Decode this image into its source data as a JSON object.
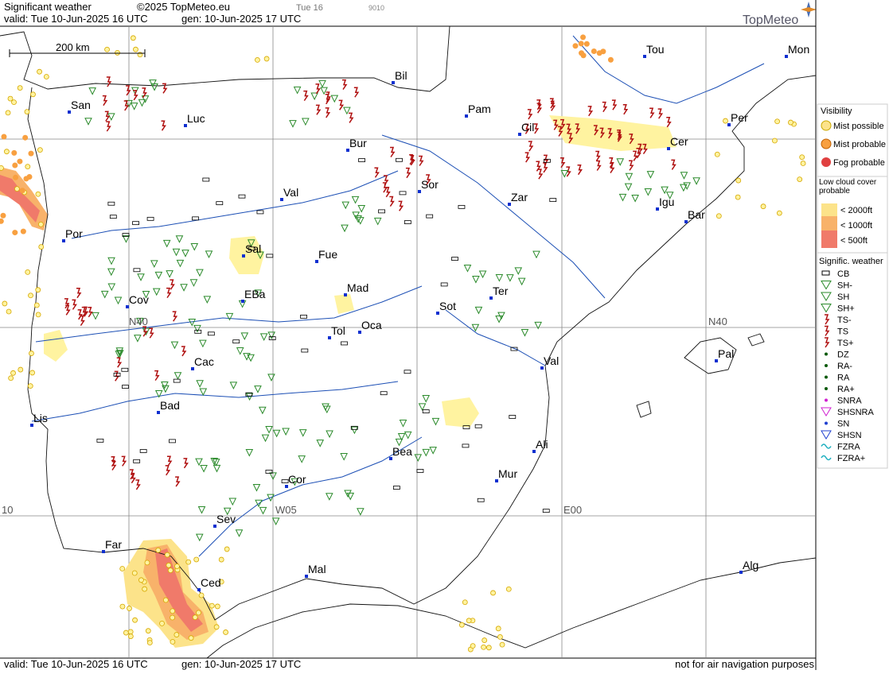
{
  "header": {
    "title": "Significant weather",
    "copyright": "©2025 TopMeteo.eu",
    "run": "Tue 16",
    "code": "9010",
    "valid": "valid:  Tue  10-Jun-2025  16 UTC",
    "gen": "gen: 10-Jun-2025 17 UTC",
    "logo": "TopMeteo"
  },
  "scale": "200 km",
  "cities": [
    "San",
    "Luc",
    "Bil",
    "Pam",
    "Tou",
    "Mon",
    "Per",
    "Cil",
    "Cer",
    "Bur",
    "Sor",
    "Zar",
    "Val",
    "Igu",
    "Bar",
    "Por",
    "Sal",
    "Fue",
    "Mad",
    "Cov",
    "EBa",
    "Tol",
    "Oca",
    "Sot",
    "Ter",
    "Val",
    "Pal",
    "Cac",
    "Bad",
    "Lis",
    "Bea",
    "Ali",
    "Mur",
    "Cor",
    "Sev",
    "Far",
    "Mal",
    "Ced",
    "Alg"
  ],
  "grid_labels": [
    "N40",
    "N40",
    "W05",
    "E00",
    "10"
  ],
  "legend": {
    "visibility": {
      "title": "Visibility",
      "items": [
        "Mist possible",
        "Mist probable",
        "Fog probable"
      ]
    },
    "cloud": {
      "title": "Low cloud cover probable",
      "items": [
        "< 2000ft",
        "< 1000ft",
        "<  500ft"
      ]
    },
    "weather": {
      "title": "Signific. weather",
      "items": [
        "CB",
        "SH-",
        "SH",
        "SH+",
        "TS-",
        "TS",
        "TS+",
        "DZ",
        "RA-",
        "RA",
        "RA+",
        "SNRA",
        "SHSNRA",
        "SN",
        "SHSN",
        "FZRA",
        "FZRA+"
      ]
    }
  },
  "footer": {
    "valid": "valid:  Tue  10-Jun-2025  16 UTC",
    "gen": "gen: 10-Jun-2025 17 UTC",
    "note": "not for air navigation purposes"
  }
}
